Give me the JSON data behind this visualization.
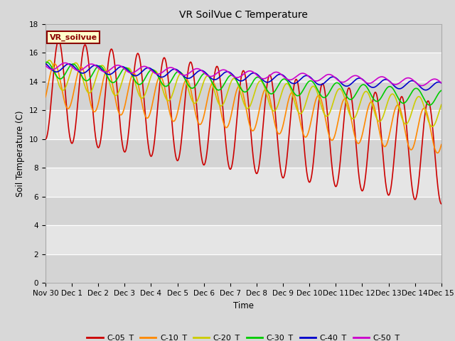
{
  "title": "VR SoilVue C Temperature",
  "xlabel": "Time",
  "ylabel": "Soil Temperature (C)",
  "ylim": [
    0,
    18
  ],
  "yticks": [
    0,
    2,
    4,
    6,
    8,
    10,
    12,
    14,
    16,
    18
  ],
  "series": {
    "C-05_T": {
      "color": "#cc0000",
      "linewidth": 1.2
    },
    "C-10_T": {
      "color": "#ff8800",
      "linewidth": 1.2
    },
    "C-20_T": {
      "color": "#cccc00",
      "linewidth": 1.2
    },
    "C-30_T": {
      "color": "#00cc00",
      "linewidth": 1.2
    },
    "C-40_T": {
      "color": "#0000cc",
      "linewidth": 1.2
    },
    "C-50_T": {
      "color": "#cc00cc",
      "linewidth": 1.2
    }
  },
  "annotation_text": "VR_soilvue",
  "annotation_color": "#8b0000",
  "annotation_bg": "#ffffcc",
  "annotation_border": "#8b0000",
  "fig_facecolor": "#d8d8d8",
  "ax_facecolor": "#e8e8e8"
}
